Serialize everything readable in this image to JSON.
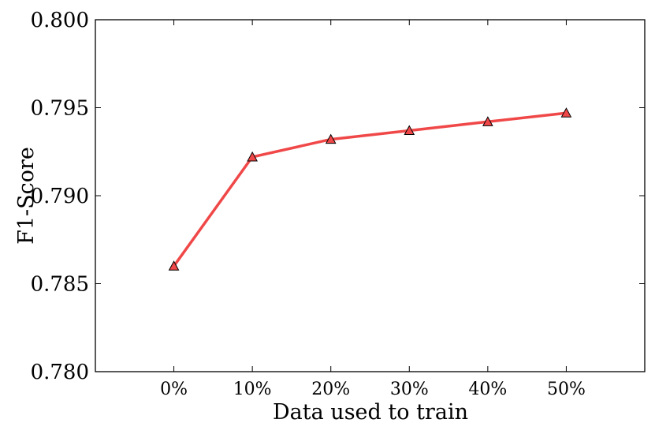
{
  "chart_data": {
    "type": "line",
    "categories": [
      "0%",
      "10%",
      "20%",
      "30%",
      "40%",
      "50%"
    ],
    "series": [
      {
        "values": [
          0.786,
          0.7922,
          0.7932,
          0.7937,
          0.7942,
          0.7947
        ],
        "color": "#f04848",
        "marker": "triangle-up"
      }
    ],
    "xlabel": "Data used to train",
    "ylabel": "F1-Score",
    "ylim": [
      0.78,
      0.8
    ],
    "yticks": [
      "0.780",
      "0.785",
      "0.790",
      "0.795",
      "0.800"
    ],
    "grid": false
  }
}
